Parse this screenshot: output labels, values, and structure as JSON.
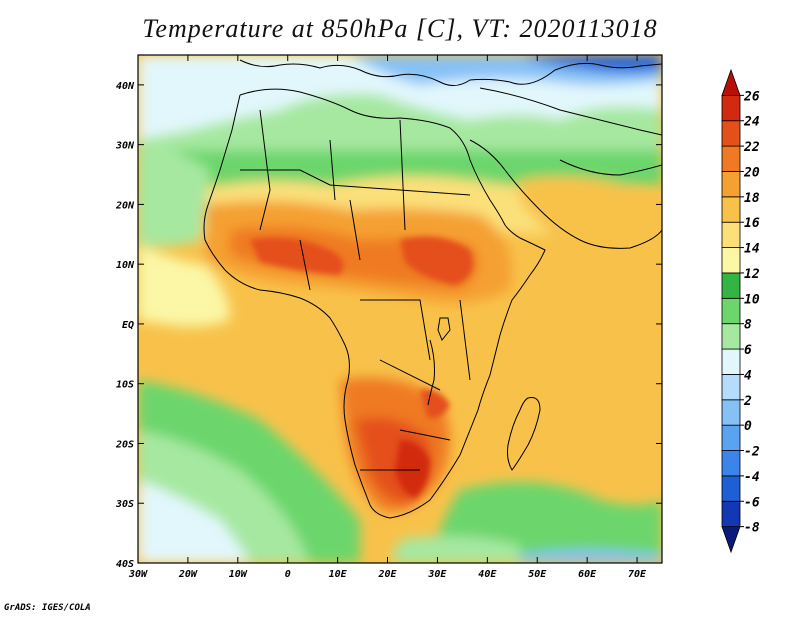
{
  "title": "Temperature at 850hPa [C], VT: 2020113018",
  "credit": "GrADS: IGES/COLA",
  "map": {
    "lon_range": [
      -30,
      75
    ],
    "lat_range": [
      -40,
      45
    ],
    "lon_ticks": [
      "30W",
      "20W",
      "10W",
      "0",
      "10E",
      "20E",
      "30E",
      "40E",
      "50E",
      "60E",
      "70E"
    ],
    "lat_ticks": [
      "40S",
      "30S",
      "20S",
      "10S",
      "EQ",
      "10N",
      "20N",
      "30N",
      "40N"
    ],
    "shaded_field": "temperature at 850 hPa (C)"
  },
  "colorbar": {
    "levels": [
      "-8",
      "-6",
      "-4",
      "-2",
      "0",
      "2",
      "4",
      "6",
      "8",
      "10",
      "12",
      "14",
      "16",
      "18",
      "20",
      "22",
      "24",
      "26"
    ],
    "colors": [
      "#0b1a7a",
      "#1438b4",
      "#1f5fd6",
      "#3b84ea",
      "#5ba2f1",
      "#86c1f6",
      "#b5dcfb",
      "#e2f7fb",
      "#a6e8a0",
      "#6cd66c",
      "#33b543",
      "#fbf7a6",
      "#fbe07a",
      "#f8c24a",
      "#f5a033",
      "#ef7a23",
      "#e4501a",
      "#d22a10",
      "#b80f0a"
    ]
  }
}
